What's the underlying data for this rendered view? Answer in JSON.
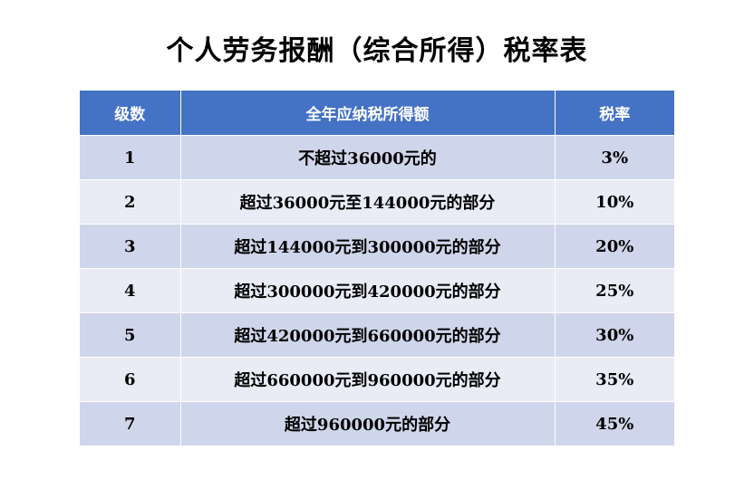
{
  "title": "个人劳务报酬（综合所得）税率表",
  "table": {
    "headers": [
      "级数",
      "全年应纳税所得额",
      "税率"
    ],
    "rows": [
      [
        "1",
        "不超过36000元的",
        "3%"
      ],
      [
        "2",
        "超过36000元至144000元的部分",
        "10%"
      ],
      [
        "3",
        "超过144000元到300000元的部分",
        "20%"
      ],
      [
        "4",
        "超过300000元到420000元的部分",
        "25%"
      ],
      [
        "5",
        "超过420000元到660000元的部分",
        "30%"
      ],
      [
        "6",
        "超过660000元到960000元的部分",
        "35%"
      ],
      [
        "7",
        "超过960000元的部分",
        "45%"
      ]
    ]
  },
  "colors": {
    "header_bg": "#4472c4",
    "row_odd_bg": "#cfd5ea",
    "row_even_bg": "#e9ebf5"
  }
}
